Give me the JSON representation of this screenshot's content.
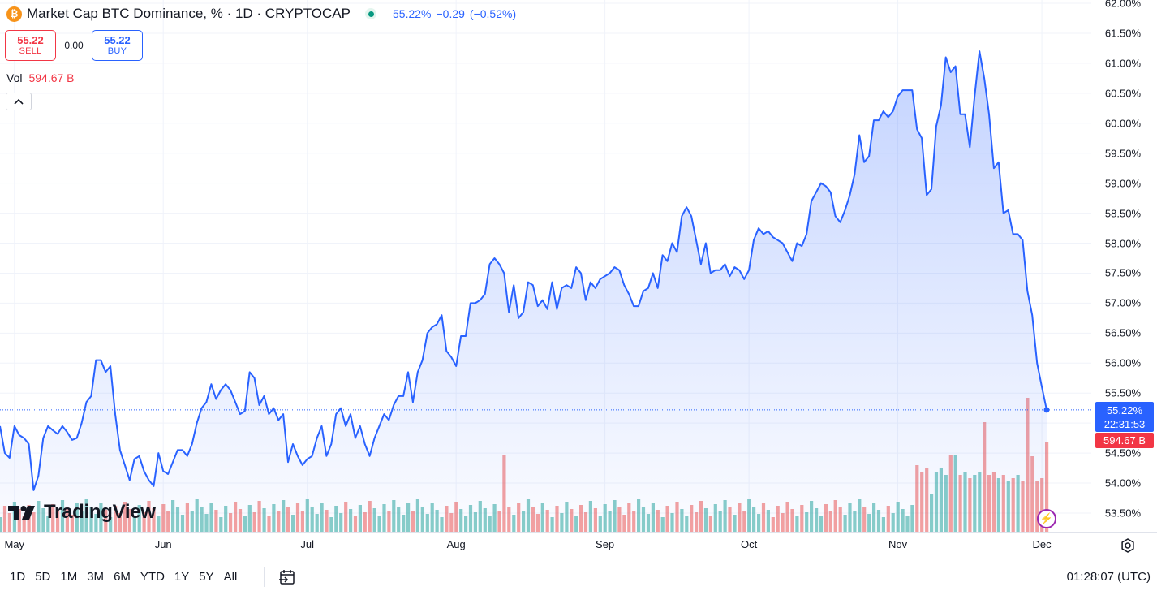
{
  "header": {
    "title": "Market Cap BTC Dominance, % · 1D · CRYPTOCAP",
    "btc_symbol": "₿",
    "last": "55.22%",
    "change": "−0.29",
    "change_pct": "(−0.52%)"
  },
  "trade": {
    "sell_price": "55.22",
    "sell_label": "SELL",
    "spread": "0.00",
    "buy_price": "55.22",
    "buy_label": "BUY"
  },
  "volume": {
    "label": "Vol",
    "value": "594.67 B"
  },
  "price_tag": {
    "value": "55.22%",
    "countdown": "22:31:53"
  },
  "vol_tag": {
    "value": "594.67 B"
  },
  "logo_text": "TradingView",
  "ranges": [
    "1D",
    "5D",
    "1M",
    "3M",
    "6M",
    "YTD",
    "1Y",
    "5Y",
    "All"
  ],
  "clock": "01:28:07 (UTC)",
  "colors": {
    "line": "#2962ff",
    "vol_up": "#26a69a",
    "vol_down": "#ef5350",
    "sell": "#f23645",
    "buy": "#2962ff"
  },
  "chart_data": {
    "type": "line",
    "x_start": "2024-04-28",
    "x_end": "2024-12-04",
    "x_ticks": [
      "May",
      "Jun",
      "Jul",
      "Aug",
      "Sep",
      "Oct",
      "Nov",
      "Dec"
    ],
    "y_ticks": [
      "53.50%",
      "54.00%",
      "54.50%",
      "55.00%",
      "55.50%",
      "56.00%",
      "56.50%",
      "57.00%",
      "57.50%",
      "58.00%",
      "58.50%",
      "59.00%",
      "59.50%",
      "60.00%",
      "60.50%",
      "61.00%",
      "61.50%",
      "62.00%"
    ],
    "ylim": [
      53.5,
      62.0
    ],
    "last_value": 55.22,
    "series": [
      {
        "values": [
          54.95,
          54.5,
          54.42,
          54.95,
          54.8,
          54.75,
          54.65,
          53.88,
          54.12,
          54.75,
          54.95,
          54.88,
          54.82,
          54.95,
          54.85,
          54.72,
          54.75,
          55.0,
          55.35,
          55.45,
          56.05,
          56.05,
          55.85,
          55.95,
          55.15,
          54.55,
          54.3,
          54.05,
          54.4,
          54.45,
          54.2,
          54.05,
          53.95,
          54.5,
          54.2,
          54.15,
          54.35,
          54.55,
          54.55,
          54.45,
          54.65,
          55.0,
          55.25,
          55.35,
          55.65,
          55.4,
          55.55,
          55.65,
          55.55,
          55.35,
          55.15,
          55.2,
          55.85,
          55.75,
          55.3,
          55.45,
          55.15,
          55.25,
          55.05,
          55.15,
          54.35,
          54.65,
          54.45,
          54.3,
          54.4,
          54.45,
          54.75,
          54.95,
          54.45,
          54.65,
          55.15,
          55.25,
          54.95,
          55.15,
          54.75,
          54.95,
          54.65,
          54.45,
          54.75,
          54.95,
          55.15,
          55.05,
          55.3,
          55.45,
          55.45,
          55.85,
          55.35,
          55.85,
          56.05,
          56.5,
          56.6,
          56.65,
          56.8,
          56.2,
          56.1,
          55.95,
          56.45,
          56.45,
          57.0,
          57.0,
          57.05,
          57.15,
          57.65,
          57.75,
          57.65,
          57.5,
          56.85,
          57.3,
          56.75,
          56.85,
          57.35,
          57.3,
          56.95,
          57.05,
          56.9,
          57.35,
          56.9,
          57.25,
          57.3,
          57.25,
          57.6,
          57.5,
          57.05,
          57.35,
          57.25,
          57.4,
          57.45,
          57.5,
          57.6,
          57.55,
          57.3,
          57.15,
          56.95,
          56.95,
          57.2,
          57.25,
          57.5,
          57.25,
          57.8,
          57.7,
          58.0,
          57.85,
          58.45,
          58.6,
          58.45,
          58.05,
          57.65,
          58.0,
          57.5,
          57.55,
          57.55,
          57.65,
          57.45,
          57.6,
          57.55,
          57.4,
          57.55,
          58.05,
          58.25,
          58.15,
          58.2,
          58.1,
          58.05,
          58.0,
          57.85,
          57.7,
          58.0,
          57.95,
          58.15,
          58.7,
          58.85,
          59.0,
          58.95,
          58.85,
          58.45,
          58.35,
          58.55,
          58.8,
          59.15,
          59.8,
          59.35,
          59.45,
          60.05,
          60.05,
          60.2,
          60.1,
          60.2,
          60.45,
          60.55,
          60.55,
          60.55,
          59.9,
          59.75,
          58.8,
          58.9,
          59.95,
          60.3,
          61.1,
          60.85,
          60.95,
          60.15,
          60.15,
          59.6,
          60.45,
          61.2,
          60.75,
          60.15,
          59.25,
          59.35,
          58.5,
          58.55,
          58.15,
          58.15,
          58.05,
          57.2,
          56.8,
          56.0,
          55.6,
          55.22
        ]
      }
    ]
  }
}
